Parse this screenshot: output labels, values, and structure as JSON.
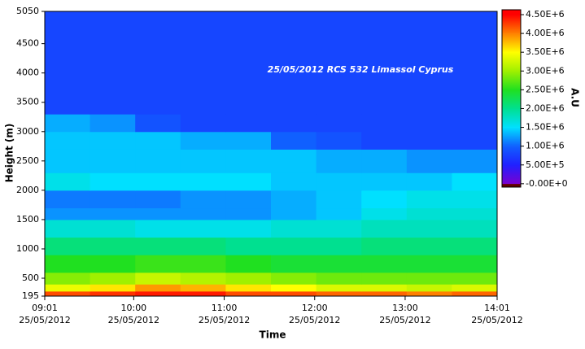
{
  "chart_data": {
    "type": "heatmap",
    "annotation": "25/05/2012 RCS 532 Limassol Cyprus",
    "xlabel": "Time",
    "ylabel": "Height (m)",
    "colorbar_label": "A.U",
    "xlim": [
      541,
      841
    ],
    "xticks": [
      {
        "value": 541,
        "label": "09:01"
      },
      {
        "value": 600,
        "label": "10:00"
      },
      {
        "value": 660,
        "label": "11:00"
      },
      {
        "value": 720,
        "label": "12:00"
      },
      {
        "value": 780,
        "label": "13:00"
      },
      {
        "value": 841,
        "label": "14:01"
      }
    ],
    "x_tick_sublabels": [
      "25/05/2012",
      "25/05/2012",
      "25/05/2012",
      "25/05/2012",
      "25/05/2012",
      "25/05/2012"
    ],
    "ylim": [
      195,
      5050
    ],
    "yticks": [
      195,
      500,
      1000,
      1500,
      2000,
      2500,
      3000,
      3500,
      4000,
      4500,
      5050
    ],
    "x_bins": [
      541,
      571,
      601,
      631,
      661,
      691,
      721,
      751,
      781,
      811,
      841
    ],
    "y_bins": [
      195,
      280,
      400,
      600,
      900,
      1200,
      1500,
      1700,
      2000,
      2300,
      2700,
      3000,
      3300,
      5050
    ],
    "values": [
      [
        4200000,
        4300000,
        4400000,
        4400000,
        4200000,
        4200000,
        4100000,
        4100000,
        4000000,
        4100000
      ],
      [
        3400000,
        3600000,
        3900000,
        3800000,
        3600000,
        3500000,
        3300000,
        3300000,
        3200000,
        3300000
      ],
      [
        2900000,
        3000000,
        3200000,
        3100000,
        3000000,
        2900000,
        2800000,
        2800000,
        2800000,
        2800000
      ],
      [
        2500000,
        2500000,
        2600000,
        2600000,
        2500000,
        2400000,
        2400000,
        2400000,
        2400000,
        2400000
      ],
      [
        2100000,
        2100000,
        2100000,
        2100000,
        2000000,
        2000000,
        2000000,
        2100000,
        2100000,
        2100000
      ],
      [
        1700000,
        1700000,
        1600000,
        1600000,
        1600000,
        1700000,
        1700000,
        1800000,
        1800000,
        1800000
      ],
      [
        1200000,
        1200000,
        1200000,
        1200000,
        1200000,
        1300000,
        1400000,
        1600000,
        1700000,
        1700000
      ],
      [
        1100000,
        1100000,
        1100000,
        1200000,
        1200000,
        1300000,
        1400000,
        1500000,
        1600000,
        1600000
      ],
      [
        1600000,
        1500000,
        1500000,
        1500000,
        1500000,
        1400000,
        1400000,
        1400000,
        1400000,
        1500000
      ],
      [
        1400000,
        1400000,
        1400000,
        1400000,
        1400000,
        1400000,
        1300000,
        1300000,
        1200000,
        1200000
      ],
      [
        1400000,
        1400000,
        1400000,
        1300000,
        1300000,
        1000000,
        900000,
        800000,
        800000,
        800000
      ],
      [
        1300000,
        1200000,
        900000,
        800000,
        800000,
        800000,
        800000,
        800000,
        800000,
        800000
      ],
      [
        800000,
        800000,
        800000,
        800000,
        800000,
        800000,
        800000,
        800000,
        800000,
        800000
      ]
    ],
    "clim": [
      -90000,
      4630000
    ],
    "colorscale": [
      {
        "value": 0,
        "color": "#7a00d0"
      },
      {
        "value": 500000,
        "color": "#2020ff"
      },
      {
        "value": 1000000,
        "color": "#1060ff"
      },
      {
        "value": 1500000,
        "color": "#00e0ff"
      },
      {
        "value": 2000000,
        "color": "#00e090"
      },
      {
        "value": 2500000,
        "color": "#20e020"
      },
      {
        "value": 3000000,
        "color": "#a0f000"
      },
      {
        "value": 3500000,
        "color": "#ffff00"
      },
      {
        "value": 4000000,
        "color": "#ff8000"
      },
      {
        "value": 4500000,
        "color": "#ff0000"
      }
    ],
    "cticks": [
      {
        "value": 4500000,
        "label": "4.50E+6"
      },
      {
        "value": 4000000,
        "label": "4.00E+6"
      },
      {
        "value": 3500000,
        "label": "3.50E+6"
      },
      {
        "value": 3000000,
        "label": "3.00E+6"
      },
      {
        "value": 2500000,
        "label": "2.50E+6"
      },
      {
        "value": 2000000,
        "label": "2.00E+6"
      },
      {
        "value": 1500000,
        "label": "1.50E+6"
      },
      {
        "value": 1000000,
        "label": "1.00E+6"
      },
      {
        "value": 500000,
        "label": "5.00E+5"
      },
      {
        "value": 0,
        "label": "-0.00E+0"
      }
    ]
  }
}
